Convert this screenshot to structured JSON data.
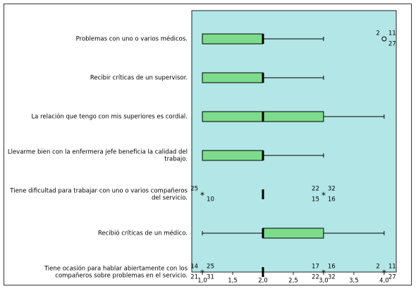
{
  "chart_data": {
    "type": "boxplot",
    "orientation": "horizontal",
    "xlim": [
      0.825,
      4.2
    ],
    "xticks": [
      {
        "value": 1,
        "label": "1,0"
      },
      {
        "value": 1.5,
        "label": "1,5"
      },
      {
        "value": 2,
        "label": "2,0"
      },
      {
        "value": 2.5,
        "label": "2,5"
      },
      {
        "value": 3,
        "label": "3,0"
      },
      {
        "value": 3.5,
        "label": "3,5"
      },
      {
        "value": 4,
        "label": "4,0"
      }
    ],
    "plot_background": "#b3e6e6",
    "box_color": "#7ddc8c",
    "boxes": [
      {
        "label": [
          "Problemas con uno o varios médicos."
        ],
        "whisker_low": 1,
        "q1": 1,
        "median": 2,
        "q3": 2,
        "whisker_high": 3,
        "outliers": [
          {
            "value": 4,
            "marker": "circle",
            "ids": [
              "2",
              "11",
              "27"
            ]
          }
        ]
      },
      {
        "label": [
          "Recibir críticas de un supervisor."
        ],
        "whisker_low": 1,
        "q1": 1,
        "median": 2,
        "q3": 2,
        "whisker_high": 3,
        "outliers": []
      },
      {
        "label": [
          "La relación que tengo con mis superiores es cordial."
        ],
        "whisker_low": 1,
        "q1": 1,
        "median": 2,
        "q3": 3,
        "whisker_high": 4,
        "outliers": []
      },
      {
        "label": [
          "Llevarme bien con la enfermera jefe beneficia la calidad del",
          "trabajo."
        ],
        "whisker_low": 1,
        "q1": 1,
        "median": 2,
        "q3": 2,
        "whisker_high": 3,
        "outliers": []
      },
      {
        "label": [
          "Tiene dificultad para trabajar con uno o varios compañeros",
          "del servicio."
        ],
        "whisker_low": 2,
        "q1": 2,
        "median": 2,
        "q3": 2,
        "whisker_high": 2,
        "outliers": [
          {
            "value": 1,
            "marker": "star",
            "ids": [
              "25",
              "10"
            ]
          },
          {
            "value": 3,
            "marker": "star",
            "ids": [
              "22",
              "32",
              "15",
              "16"
            ]
          }
        ]
      },
      {
        "label": [
          "Recibió críticas de un médico."
        ],
        "whisker_low": 1,
        "q1": 2,
        "median": 2,
        "q3": 3,
        "whisker_high": 4,
        "outliers": []
      },
      {
        "label": [
          "Tiene ocasión para hablar abiertamente con los",
          "compañeros sobre problemas en el servicio."
        ],
        "whisker_low": 2,
        "q1": 2,
        "median": 2,
        "q3": 2,
        "whisker_high": 2,
        "outliers": [
          {
            "value": 1,
            "marker": "star",
            "ids": [
              "14",
              "25",
              "21",
              "31"
            ]
          },
          {
            "value": 3,
            "marker": "star",
            "ids": [
              "17",
              "16",
              "22",
              "32"
            ]
          },
          {
            "value": 4,
            "marker": "star",
            "ids": [
              "2",
              "11",
              "27"
            ]
          }
        ]
      }
    ]
  }
}
